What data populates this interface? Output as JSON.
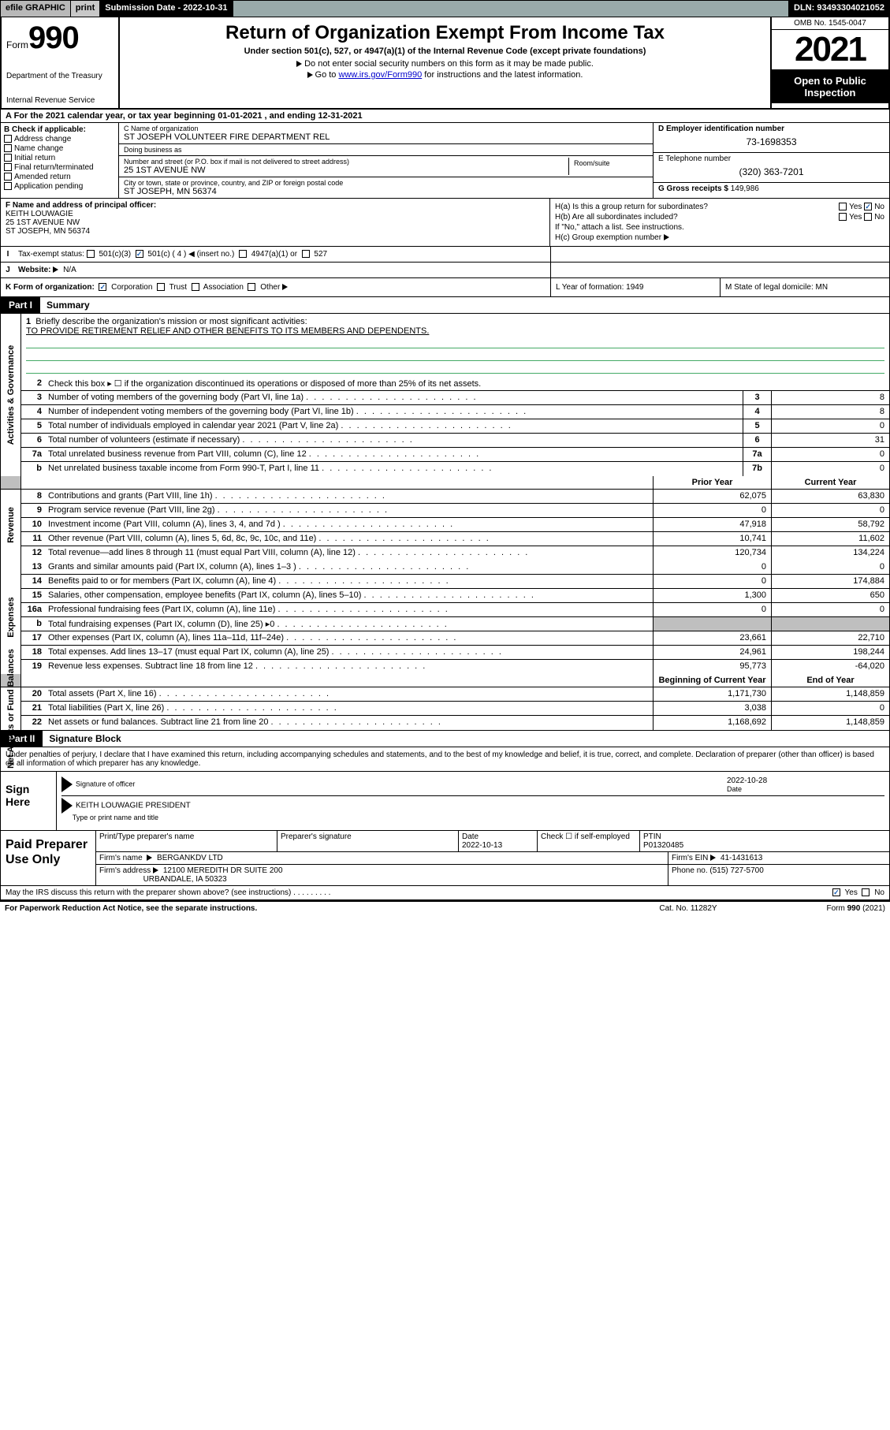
{
  "topbar": {
    "efile": "efile GRAPHIC",
    "print": "print",
    "subdate_label": "Submission Date - 2022-10-31",
    "dln": "DLN: 93493304021052"
  },
  "header": {
    "form_label": "Form",
    "form_num": "990",
    "dept": "Department of the Treasury",
    "irs": "Internal Revenue Service",
    "title": "Return of Organization Exempt From Income Tax",
    "subtitle": "Under section 501(c), 527, or 4947(a)(1) of the Internal Revenue Code (except private foundations)",
    "note1": "Do not enter social security numbers on this form as it may be made public.",
    "note2_pre": "Go to ",
    "note2_link": "www.irs.gov/Form990",
    "note2_post": " for instructions and the latest information.",
    "omb": "OMB No. 1545-0047",
    "year": "2021",
    "open": "Open to Public Inspection"
  },
  "rowA": "A For the 2021 calendar year, or tax year beginning 01-01-2021   , and ending 12-31-2021",
  "colB": {
    "label": "B Check if applicable:",
    "items": [
      "Address change",
      "Name change",
      "Initial return",
      "Final return/terminated",
      "Amended return",
      "Application pending"
    ]
  },
  "colC": {
    "name_label": "C Name of organization",
    "name": "ST JOSEPH VOLUNTEER FIRE DEPARTMENT REL",
    "dba_label": "Doing business as",
    "dba": "",
    "addr_label": "Number and street (or P.O. box if mail is not delivered to street address)",
    "addr": "25 1ST AVENUE NW",
    "room_label": "Room/suite",
    "city_label": "City or town, state or province, country, and ZIP or foreign postal code",
    "city": "ST JOSEPH, MN  56374"
  },
  "colD": {
    "ein_label": "D Employer identification number",
    "ein": "73-1698353",
    "phone_label": "E Telephone number",
    "phone": "(320) 363-7201",
    "gross_label": "G Gross receipts $",
    "gross": "149,986"
  },
  "rowF": {
    "label": "F Name and address of principal officer:",
    "name": "KEITH LOUWAGIE",
    "addr1": "25 1ST AVENUE NW",
    "addr2": "ST JOSEPH, MN  56374"
  },
  "rowH": {
    "ha": "H(a)  Is this a group return for subordinates?",
    "ha_yes": "Yes",
    "ha_no": "No",
    "hb": "H(b)  Are all subordinates included?",
    "hb_yes": "Yes",
    "hb_no": "No",
    "hb_note": "If \"No,\" attach a list. See instructions.",
    "hc": "H(c)  Group exemption number"
  },
  "rowI": {
    "label": "Tax-exempt status:",
    "o1": "501(c)(3)",
    "o2": "501(c) ( 4 )",
    "o2_ins": "(insert no.)",
    "o3": "4947(a)(1) or",
    "o4": "527"
  },
  "rowJ": {
    "label": "Website:",
    "val": "N/A"
  },
  "rowK": {
    "label": "K Form of organization:",
    "opts": [
      "Corporation",
      "Trust",
      "Association",
      "Other"
    ],
    "L": "L Year of formation: 1949",
    "M": "M State of legal domicile: MN"
  },
  "partI": {
    "tag": "Part I",
    "title": "Summary"
  },
  "summary": {
    "g1": {
      "vtab": "Activities & Governance",
      "q1_label": "Briefly describe the organization's mission or most significant activities:",
      "q1_text": "TO PROVIDE RETIREMENT RELIEF AND OTHER BENEFITS TO ITS MEMBERS AND DEPENDENTS.",
      "q2": "Check this box ▸ ☐  if the organization discontinued its operations or disposed of more than 25% of its net assets.",
      "rows": [
        {
          "n": "3",
          "d": "Number of voting members of the governing body (Part VI, line 1a)",
          "bx": "3",
          "v": "8"
        },
        {
          "n": "4",
          "d": "Number of independent voting members of the governing body (Part VI, line 1b)",
          "bx": "4",
          "v": "8"
        },
        {
          "n": "5",
          "d": "Total number of individuals employed in calendar year 2021 (Part V, line 2a)",
          "bx": "5",
          "v": "0"
        },
        {
          "n": "6",
          "d": "Total number of volunteers (estimate if necessary)",
          "bx": "6",
          "v": "31"
        },
        {
          "n": "7a",
          "d": "Total unrelated business revenue from Part VIII, column (C), line 12",
          "bx": "7a",
          "v": "0"
        },
        {
          "n": "b",
          "d": "Net unrelated business taxable income from Form 990-T, Part I, line 11",
          "bx": "7b",
          "v": "0"
        }
      ]
    },
    "colhdr": {
      "prior": "Prior Year",
      "curr": "Current Year"
    },
    "g2": {
      "vtab": "Revenue",
      "rows": [
        {
          "n": "8",
          "d": "Contributions and grants (Part VIII, line 1h)",
          "p": "62,075",
          "c": "63,830"
        },
        {
          "n": "9",
          "d": "Program service revenue (Part VIII, line 2g)",
          "p": "0",
          "c": "0"
        },
        {
          "n": "10",
          "d": "Investment income (Part VIII, column (A), lines 3, 4, and 7d )",
          "p": "47,918",
          "c": "58,792"
        },
        {
          "n": "11",
          "d": "Other revenue (Part VIII, column (A), lines 5, 6d, 8c, 9c, 10c, and 11e)",
          "p": "10,741",
          "c": "11,602"
        },
        {
          "n": "12",
          "d": "Total revenue—add lines 8 through 11 (must equal Part VIII, column (A), line 12)",
          "p": "120,734",
          "c": "134,224"
        }
      ]
    },
    "g3": {
      "vtab": "Expenses",
      "rows": [
        {
          "n": "13",
          "d": "Grants and similar amounts paid (Part IX, column (A), lines 1–3 )",
          "p": "0",
          "c": "0"
        },
        {
          "n": "14",
          "d": "Benefits paid to or for members (Part IX, column (A), line 4)",
          "p": "0",
          "c": "174,884"
        },
        {
          "n": "15",
          "d": "Salaries, other compensation, employee benefits (Part IX, column (A), lines 5–10)",
          "p": "1,300",
          "c": "650"
        },
        {
          "n": "16a",
          "d": "Professional fundraising fees (Part IX, column (A), line 11e)",
          "p": "0",
          "c": "0"
        },
        {
          "n": "b",
          "d": "Total fundraising expenses (Part IX, column (D), line 25) ▸0",
          "p": "",
          "c": "",
          "grey": true
        },
        {
          "n": "17",
          "d": "Other expenses (Part IX, column (A), lines 11a–11d, 11f–24e)",
          "p": "23,661",
          "c": "22,710"
        },
        {
          "n": "18",
          "d": "Total expenses. Add lines 13–17 (must equal Part IX, column (A), line 25)",
          "p": "24,961",
          "c": "198,244"
        },
        {
          "n": "19",
          "d": "Revenue less expenses. Subtract line 18 from line 12",
          "p": "95,773",
          "c": "-64,020"
        }
      ]
    },
    "colhdr2": {
      "prior": "Beginning of Current Year",
      "curr": "End of Year"
    },
    "g4": {
      "vtab": "Net Assets or Fund Balances",
      "rows": [
        {
          "n": "20",
          "d": "Total assets (Part X, line 16)",
          "p": "1,171,730",
          "c": "1,148,859"
        },
        {
          "n": "21",
          "d": "Total liabilities (Part X, line 26)",
          "p": "3,038",
          "c": "0"
        },
        {
          "n": "22",
          "d": "Net assets or fund balances. Subtract line 21 from line 20",
          "p": "1,168,692",
          "c": "1,148,859"
        }
      ]
    }
  },
  "partII": {
    "tag": "Part II",
    "title": "Signature Block"
  },
  "sig": {
    "decl": "Under penalties of perjury, I declare that I have examined this return, including accompanying schedules and statements, and to the best of my knowledge and belief, it is true, correct, and complete. Declaration of preparer (other than officer) is based on all information of which preparer has any knowledge.",
    "sign_here": "Sign Here",
    "sig_officer": "Signature of officer",
    "sig_date": "Date",
    "sig_date_val": "2022-10-28",
    "sig_name": "KEITH LOUWAGIE  PRESIDENT",
    "sig_name_label": "Type or print name and title",
    "paid_label": "Paid Preparer Use Only",
    "prep_name_label": "Print/Type preparer's name",
    "prep_sig_label": "Preparer's signature",
    "prep_date_label": "Date",
    "prep_date": "2022-10-13",
    "prep_check": "Check ☐ if self-employed",
    "ptin_label": "PTIN",
    "ptin": "P01320485",
    "firm_name_label": "Firm's name",
    "firm_name": "BERGANKDV LTD",
    "firm_ein_label": "Firm's EIN",
    "firm_ein": "41-1431613",
    "firm_addr_label": "Firm's address",
    "firm_addr1": "12100 MEREDITH DR SUITE 200",
    "firm_addr2": "URBANDALE, IA  50323",
    "firm_phone_label": "Phone no.",
    "firm_phone": "(515) 727-5700",
    "may_irs": "May the IRS discuss this return with the preparer shown above? (see instructions)",
    "may_yes": "Yes",
    "may_no": "No"
  },
  "footer": {
    "f1": "For Paperwork Reduction Act Notice, see the separate instructions.",
    "f2": "Cat. No. 11282Y",
    "f3": "Form 990 (2021)"
  }
}
